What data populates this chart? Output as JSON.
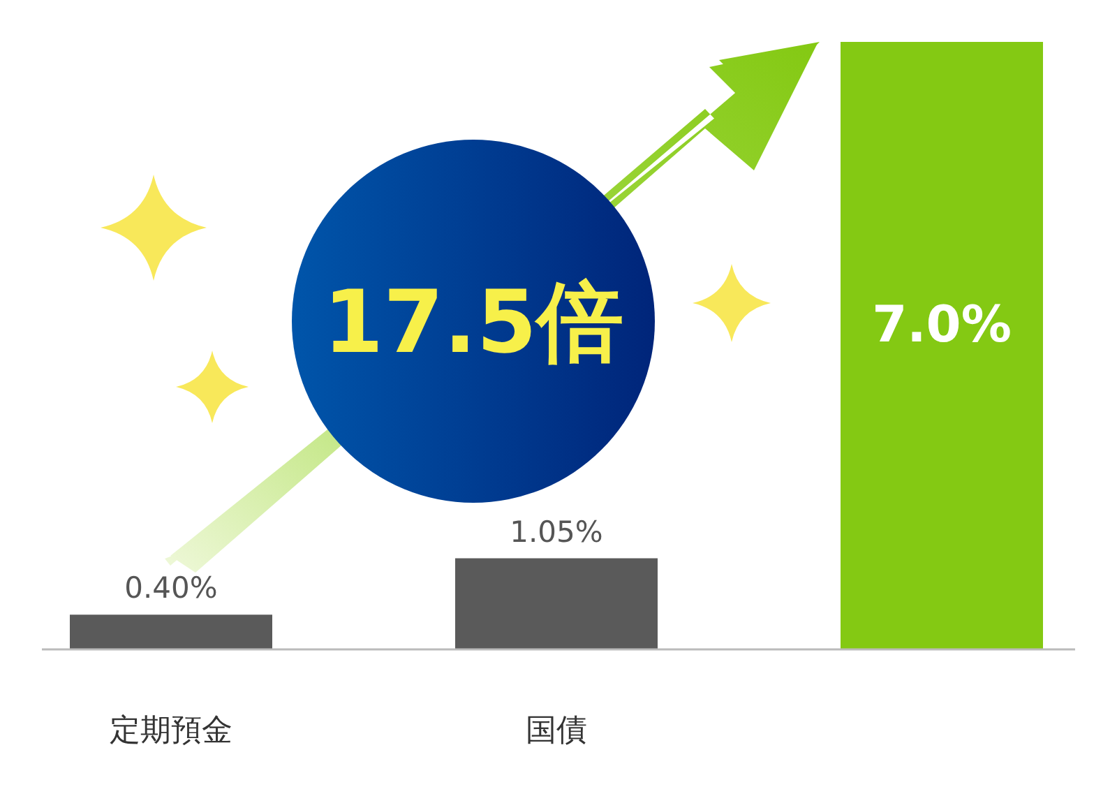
{
  "chart_data": {
    "type": "bar",
    "categories": [
      "定期預金",
      "国債",
      null
    ],
    "values": [
      0.4,
      1.05,
      7.0
    ],
    "colors": [
      "#5a5a5a",
      "#5a5a5a",
      "#84c913"
    ],
    "value_labels": [
      "0.40%",
      "1.05%",
      "7.0%"
    ],
    "annotations": [
      "17.5倍"
    ]
  }
}
